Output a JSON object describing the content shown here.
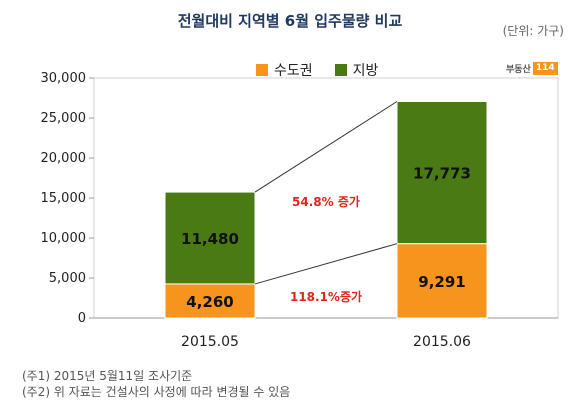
{
  "chart_data": {
    "type": "bar",
    "stacked": true,
    "title": "전월대비 지역별 6월 입주물량 비교",
    "unit_label": "(단위: 가구)",
    "categories": [
      "2015.05",
      "2015.06"
    ],
    "series": [
      {
        "name": "수도권",
        "values": [
          4260,
          9291
        ],
        "labels": [
          "4,260",
          "9,291"
        ],
        "color": "#f7941d"
      },
      {
        "name": "지방",
        "values": [
          11480,
          17773
        ],
        "labels": [
          "11,480",
          "17,773"
        ],
        "color": "#4a7a14"
      }
    ],
    "y_ticks": [
      "0",
      "5,000",
      "10,000",
      "15,000",
      "20,000",
      "25,000",
      "30,000"
    ],
    "ylim": [
      0,
      30000
    ],
    "grid": false,
    "legend_position": "top",
    "annotations": {
      "total_change": "54.8% 증가",
      "capital_change": "118.1%증가"
    }
  },
  "logo": {
    "text": "부동산",
    "tag": "114"
  },
  "notes": [
    "(주1) 2015년 5월11일 조사기준",
    "(주2) 위 자료는 건설사의 사정에 따라 변경될 수 있음"
  ]
}
